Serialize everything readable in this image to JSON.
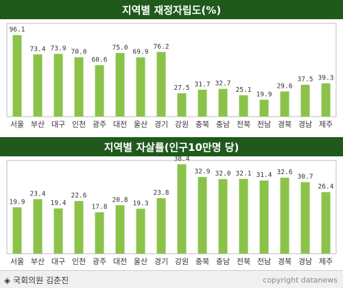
{
  "chart_data": [
    {
      "type": "bar",
      "title": "지역별 재정자립도(%)",
      "categories": [
        "서울",
        "부산",
        "대구",
        "인천",
        "광주",
        "대전",
        "울산",
        "경기",
        "강원",
        "충북",
        "충남",
        "전북",
        "전남",
        "경북",
        "경남",
        "제주"
      ],
      "values": [
        96.1,
        73.4,
        73.9,
        70.0,
        60.6,
        75.0,
        69.9,
        76.2,
        27.5,
        31.7,
        32.7,
        25.1,
        19.9,
        29.6,
        37.5,
        39.3
      ],
      "value_labels": [
        "96.1",
        "73.4",
        "73.9",
        "70.0",
        "60.6",
        "75.0",
        "69.9",
        "76.2",
        "27.5",
        "31.7",
        "32.7",
        "25.1",
        "19.9",
        "29.6",
        "37.5",
        "39.3"
      ],
      "ylim": [
        0,
        110
      ],
      "grid": false,
      "bar_color": "#8bc34a"
    },
    {
      "type": "bar",
      "title": "지역별 자살률(인구10만명 당)",
      "categories": [
        "서울",
        "부산",
        "대구",
        "인천",
        "광주",
        "대전",
        "울산",
        "경기",
        "강원",
        "충북",
        "충남",
        "전북",
        "전남",
        "경북",
        "경남",
        "제주"
      ],
      "values": [
        19.9,
        23.4,
        19.4,
        22.6,
        17.8,
        20.8,
        19.3,
        23.8,
        38.4,
        32.9,
        32.0,
        32.1,
        31.4,
        32.6,
        30.7,
        26.4
      ],
      "value_labels": [
        "19.9",
        "23.4",
        "19.4",
        "22.6",
        "17.8",
        "20.8",
        "19.3",
        "23.8",
        "38.4",
        "32.9",
        "32.0",
        "32.1",
        "31.4",
        "32.6",
        "30.7",
        "26.4"
      ],
      "ylim": [
        0,
        40
      ],
      "grid": false,
      "bar_color": "#8bc34a"
    }
  ],
  "footer": {
    "source": "◈ 국회의원 김춘진",
    "copyright": "copyright datanews"
  },
  "colors": {
    "title_bg": "#1f5a1c",
    "plot_border": "#bbbbbb",
    "bar": "#8bc34a"
  }
}
